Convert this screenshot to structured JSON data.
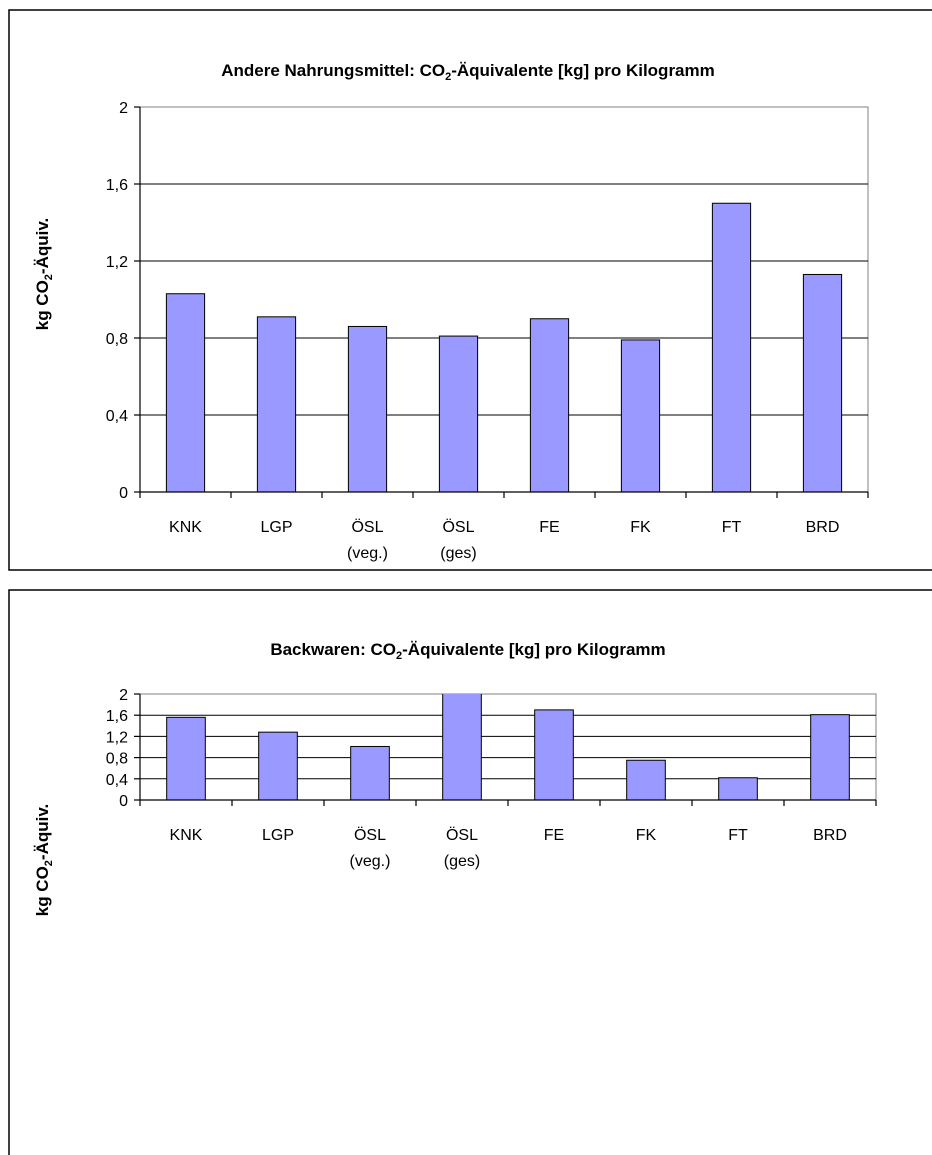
{
  "chart_data": [
    {
      "type": "bar",
      "title": {
        "before": "Andere Nahrungsmittel: CO",
        "sub": "2",
        "after": "-Äquivalente [kg] pro Kilogramm"
      },
      "ylabel": {
        "before": "kg CO",
        "sub": "2",
        "after": "-Äquiv."
      },
      "categories": [
        {
          "line1": "KNK",
          "line2": ""
        },
        {
          "line1": "LGP",
          "line2": ""
        },
        {
          "line1": "ÖSL",
          "line2": "(veg.)"
        },
        {
          "line1": "ÖSL",
          "line2": "(ges)"
        },
        {
          "line1": "FE",
          "line2": ""
        },
        {
          "line1": "FK",
          "line2": ""
        },
        {
          "line1": "FT",
          "line2": ""
        },
        {
          "line1": "BRD",
          "line2": ""
        }
      ],
      "values": [
        1.03,
        0.91,
        0.86,
        0.81,
        0.9,
        0.79,
        1.5,
        1.13
      ],
      "ylim": [
        0,
        2
      ],
      "yticks": [
        0,
        0.4,
        0.8,
        1.2,
        1.6,
        2
      ],
      "ytick_labels": [
        "0",
        "0,4",
        "0,8",
        "1,2",
        "1,6",
        "2"
      ],
      "grid": true,
      "bar_color": "#9999ff"
    },
    {
      "type": "bar",
      "title": {
        "before": "Backwaren: CO",
        "sub": "2",
        "after": "-Äquivalente [kg] pro Kilogramm"
      },
      "ylabel": {
        "before": "kg CO",
        "sub": "2",
        "after": "-Äquiv."
      },
      "categories": [
        {
          "line1": "KNK",
          "line2": ""
        },
        {
          "line1": "LGP",
          "line2": ""
        },
        {
          "line1": "ÖSL",
          "line2": "(veg.)"
        },
        {
          "line1": "ÖSL",
          "line2": "(ges)"
        },
        {
          "line1": "FE",
          "line2": ""
        },
        {
          "line1": "FK",
          "line2": ""
        },
        {
          "line1": "FT",
          "line2": ""
        },
        {
          "line1": "BRD",
          "line2": ""
        }
      ],
      "values": [
        1.56,
        1.28,
        1.01,
        2.13,
        1.7,
        0.75,
        0.42,
        1.61
      ],
      "ylim": [
        0,
        2
      ],
      "yticks": [
        0,
        0.4,
        0.8,
        1.2,
        1.6,
        2
      ],
      "ytick_labels": [
        "0",
        "0,4",
        "0,8",
        "1,2",
        "1,6",
        "2"
      ],
      "grid": true,
      "bar_color": "#9999ff"
    }
  ]
}
